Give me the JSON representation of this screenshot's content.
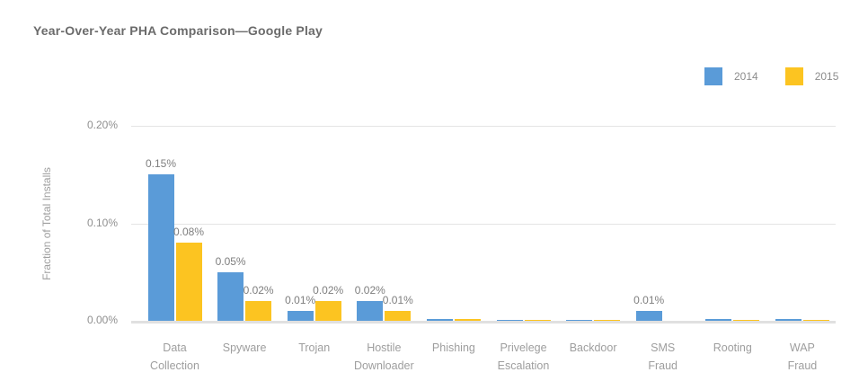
{
  "title": "Year-Over-Year PHA Comparison—Google Play",
  "legend": [
    {
      "label": "2014",
      "color": "#5a9bd8"
    },
    {
      "label": "2015",
      "color": "#fcc421"
    }
  ],
  "y_axis": {
    "title": "Fraction of Total Installs",
    "ticks": [
      "0.20%",
      "0.10%",
      "0.00%"
    ]
  },
  "chart_data": {
    "type": "bar",
    "title": "Year-Over-Year PHA Comparison—Google Play",
    "xlabel": "",
    "ylabel": "Fraction of Total Installs",
    "ylim": [
      0,
      0.2
    ],
    "grid": "horizontal",
    "legend_position": "top-right",
    "y_ticks": [
      {
        "value": 0.2,
        "label": "0.20%"
      },
      {
        "value": 0.1,
        "label": "0.10%"
      },
      {
        "value": 0.0,
        "label": "0.00%"
      }
    ],
    "categories": [
      "Data Collection",
      "Spyware",
      "Trojan",
      "Hostile Downloader",
      "Phishing",
      "Privelege Escalation",
      "Backdoor",
      "SMS Fraud",
      "Rooting",
      "WAP Fraud"
    ],
    "series": [
      {
        "name": "2014",
        "color": "#5a9bd8",
        "values": [
          0.15,
          0.05,
          0.01,
          0.02,
          0.002,
          0.001,
          0.001,
          0.01,
          0.0015,
          0.0015
        ],
        "labels": [
          "0.15%",
          "0.05%",
          "0.01%",
          "0.02%",
          "",
          "",
          "",
          "0.01%",
          "",
          ""
        ]
      },
      {
        "name": "2015",
        "color": "#fcc421",
        "values": [
          0.08,
          0.02,
          0.02,
          0.01,
          0.002,
          0.001,
          0.001,
          0,
          0.001,
          0.001
        ],
        "labels": [
          "0.08%",
          "0.02%",
          "0.02%",
          "0.01%",
          "",
          "",
          "",
          "",
          "",
          ""
        ]
      }
    ]
  }
}
